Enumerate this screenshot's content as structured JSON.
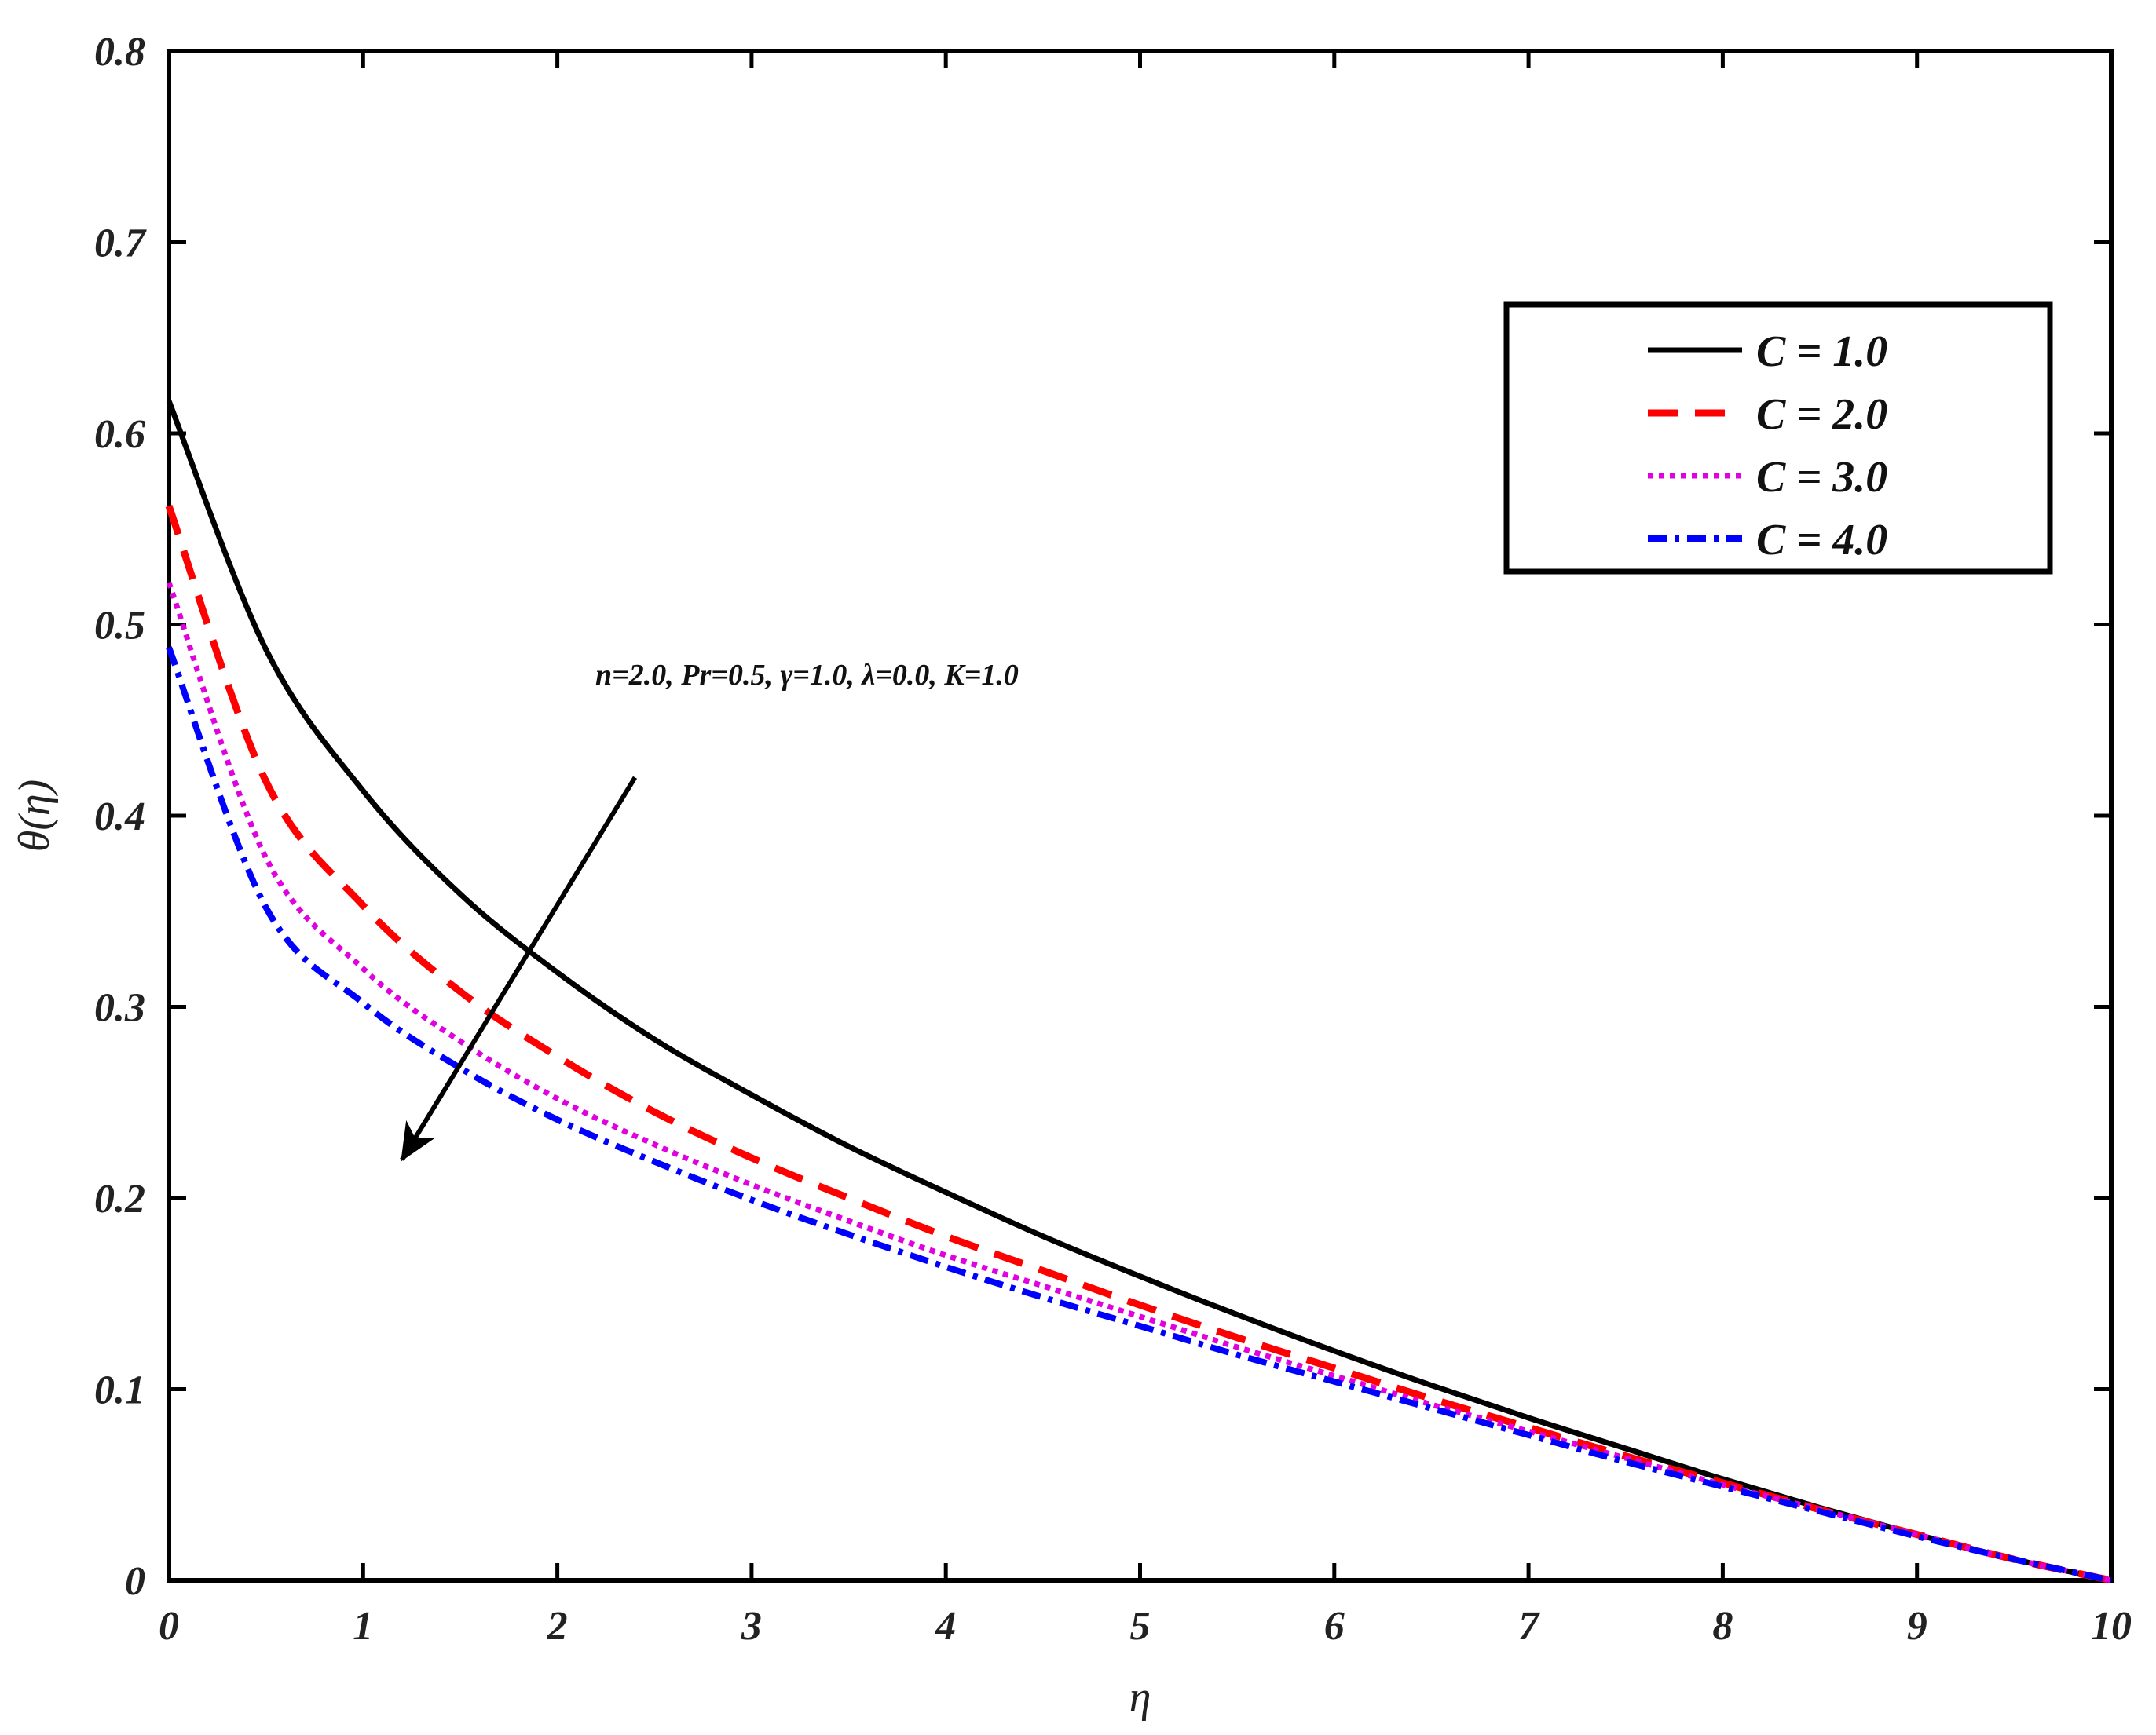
{
  "chart_data": {
    "type": "line",
    "xlabel": "η",
    "ylabel": "θ(η)",
    "xlim": [
      0,
      10
    ],
    "ylim": [
      0,
      0.8
    ],
    "xticks": [
      0,
      1,
      2,
      3,
      4,
      5,
      6,
      7,
      8,
      9,
      10
    ],
    "yticks": [
      0,
      0.1,
      0.2,
      0.3,
      0.4,
      0.5,
      0.6,
      0.7,
      0.8
    ],
    "xtick_labels": [
      "0",
      "1",
      "2",
      "3",
      "4",
      "5",
      "6",
      "7",
      "8",
      "9",
      "10"
    ],
    "ytick_labels": [
      "0",
      "0.1",
      "0.2",
      "0.3",
      "0.4",
      "0.5",
      "0.6",
      "0.7",
      "0.8"
    ],
    "grid": false,
    "legend_position": "top-right",
    "annotation": {
      "text": "n=2.0, Pr=0.5,  γ=1.0,  λ=0.0, K=1.0",
      "arrow_from": [
        2.4,
        0.42
      ],
      "arrow_to": [
        1.2,
        0.22
      ]
    },
    "x": [
      0,
      0.5,
      1,
      1.5,
      2,
      2.5,
      3,
      3.5,
      4,
      4.5,
      5,
      5.5,
      6,
      6.5,
      7,
      7.5,
      8,
      8.5,
      9,
      9.5,
      10
    ],
    "series": [
      {
        "name": "C = 1.0",
        "color": "#000000",
        "style": "solid",
        "values": [
          0.617,
          0.487,
          0.413,
          0.359,
          0.318,
          0.283,
          0.254,
          0.227,
          0.203,
          0.18,
          0.159,
          0.139,
          0.12,
          0.102,
          0.085,
          0.069,
          0.053,
          0.038,
          0.024,
          0.011,
          0.0
        ]
      },
      {
        "name": "C = 2.0",
        "color": "#ff0000",
        "style": "dashed",
        "values": [
          0.562,
          0.418,
          0.353,
          0.308,
          0.274,
          0.245,
          0.221,
          0.2,
          0.18,
          0.162,
          0.144,
          0.127,
          0.111,
          0.095,
          0.08,
          0.065,
          0.051,
          0.037,
          0.024,
          0.011,
          0.0
        ]
      },
      {
        "name": "C = 3.0",
        "color": "#e000e0",
        "style": "dotted",
        "values": [
          0.522,
          0.378,
          0.32,
          0.282,
          0.252,
          0.228,
          0.207,
          0.188,
          0.17,
          0.154,
          0.138,
          0.122,
          0.107,
          0.092,
          0.078,
          0.064,
          0.05,
          0.037,
          0.024,
          0.011,
          0.0
        ]
      },
      {
        "name": "C = 4.0",
        "color": "#0000ff",
        "style": "dashdot",
        "values": [
          0.488,
          0.352,
          0.302,
          0.268,
          0.241,
          0.219,
          0.199,
          0.181,
          0.164,
          0.148,
          0.133,
          0.118,
          0.104,
          0.09,
          0.076,
          0.062,
          0.049,
          0.036,
          0.023,
          0.011,
          0.0
        ]
      }
    ]
  }
}
